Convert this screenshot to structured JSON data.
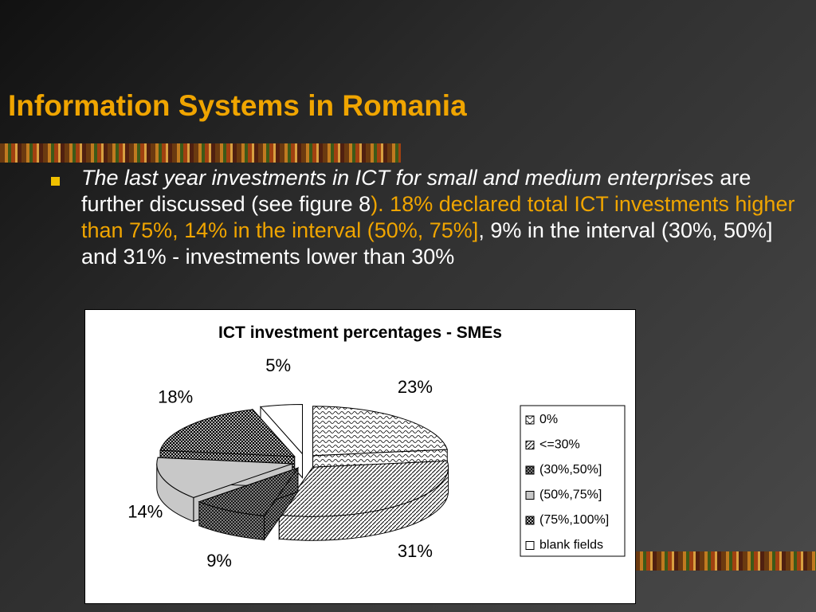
{
  "slide": {
    "title": "Information Systems in Romania",
    "bullet": [
      "The last year investments in ICT for small and medium enterprises",
      " are further discussed (see figure 8",
      "). 18% declared total ICT investments higher than 75%, 14% in the interval (50%, 75%]",
      ", 9% in the interval (30%, 50%] and 31% - investments lower than 30%"
    ]
  },
  "chart_data": {
    "type": "pie",
    "title": "ICT investment percentages - SMEs",
    "categories": [
      "0%",
      "<=30%",
      "(30%,50%]",
      "(50%,75%]",
      "(75%,100%]",
      "blank fields"
    ],
    "values": [
      23,
      31,
      9,
      14,
      18,
      5
    ],
    "value_labels": [
      "23%",
      "31%",
      "9%",
      "14%",
      "18%",
      "5%"
    ],
    "colors": [
      "#ffffff",
      "#ffffff",
      "#9a9a9a",
      "#c8c8c8",
      "#b0b0b0",
      "#ffffff"
    ],
    "legend": "right"
  }
}
